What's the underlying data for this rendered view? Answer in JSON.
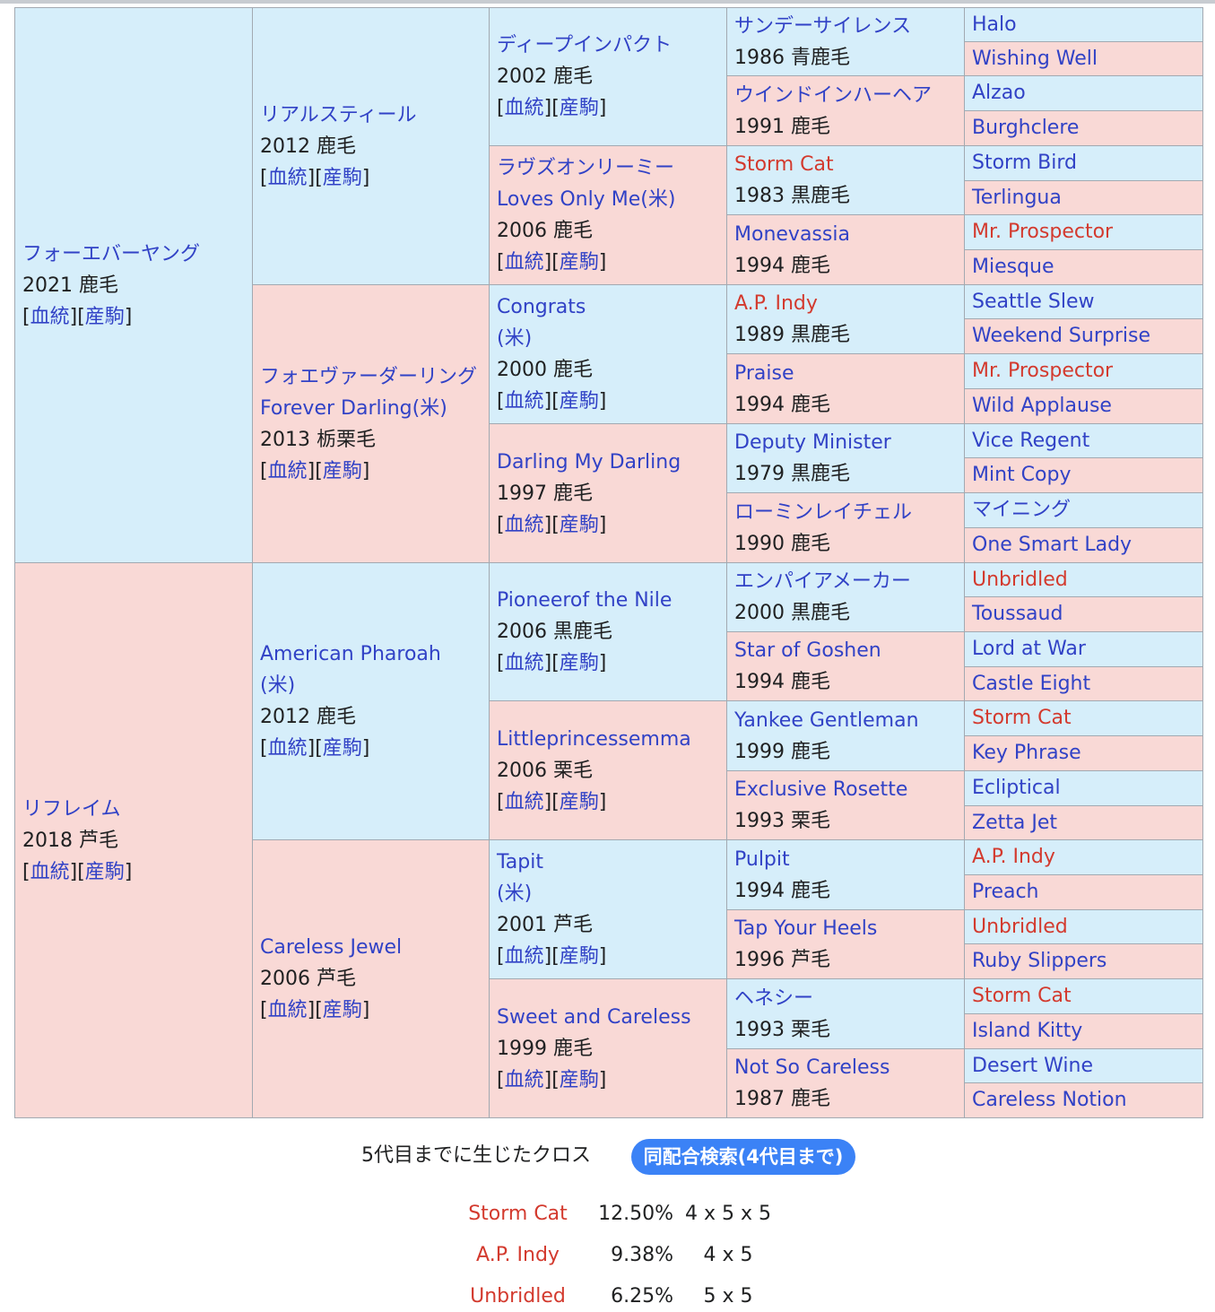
{
  "gen1": [
    {
      "name": "フォーエバーヤング",
      "year": "2021 鹿毛",
      "sex": "male"
    },
    {
      "name": "リフレイム",
      "year": "2018 芦毛",
      "sex": "female"
    }
  ],
  "gen2": [
    {
      "name": "リアルスティール",
      "year": "2012 鹿毛",
      "sex": "male"
    },
    {
      "name": "フォエヴァーダーリング",
      "name2": "Forever Darling(米)",
      "year": "2013 栃栗毛",
      "sex": "female"
    },
    {
      "name": "American Pharoah",
      "name2": "(米)",
      "year": "2012 鹿毛",
      "sex": "male"
    },
    {
      "name": "Careless Jewel",
      "year": "2006 芦毛",
      "sex": "female"
    }
  ],
  "gen3": [
    {
      "name": "ディープインパクト",
      "year": "2002 鹿毛",
      "sex": "male"
    },
    {
      "name": "ラヴズオンリーミー",
      "name2": "Loves Only Me(米)",
      "year": "2006 鹿毛",
      "sex": "female"
    },
    {
      "name": "Congrats",
      "name2": "(米)",
      "year": "2000 鹿毛",
      "sex": "male"
    },
    {
      "name": "Darling My Darling",
      "year": "1997 鹿毛",
      "sex": "female"
    },
    {
      "name": "Pioneerof the Nile",
      "year": "2006 黒鹿毛",
      "sex": "male"
    },
    {
      "name": "Littleprincessemma",
      "year": "2006 栗毛",
      "sex": "female"
    },
    {
      "name": "Tapit",
      "name2": "(米)",
      "year": "2001 芦毛",
      "sex": "male"
    },
    {
      "name": "Sweet and Careless",
      "year": "1999 鹿毛",
      "sex": "female"
    }
  ],
  "gen4": [
    {
      "name": "サンデーサイレンス",
      "year": "1986 青鹿毛",
      "sex": "male",
      "cross": false
    },
    {
      "name": "ウインドインハーヘア",
      "year": "1991 鹿毛",
      "sex": "female",
      "cross": false
    },
    {
      "name": "Storm Cat",
      "year": "1983 黒鹿毛",
      "sex": "male",
      "cross": true
    },
    {
      "name": "Monevassia",
      "year": "1994 鹿毛",
      "sex": "female",
      "cross": false
    },
    {
      "name": "A.P. Indy",
      "year": "1989 黒鹿毛",
      "sex": "male",
      "cross": true
    },
    {
      "name": "Praise",
      "year": "1994 鹿毛",
      "sex": "female",
      "cross": false
    },
    {
      "name": "Deputy Minister",
      "year": "1979 黒鹿毛",
      "sex": "male",
      "cross": false
    },
    {
      "name": "ローミンレイチェル",
      "year": "1990 鹿毛",
      "sex": "female",
      "cross": false
    },
    {
      "name": "エンパイアメーカー",
      "year": "2000 黒鹿毛",
      "sex": "male",
      "cross": false
    },
    {
      "name": "Star of Goshen",
      "year": "1994 鹿毛",
      "sex": "female",
      "cross": false
    },
    {
      "name": "Yankee Gentleman",
      "year": "1999 鹿毛",
      "sex": "male",
      "cross": false
    },
    {
      "name": "Exclusive Rosette",
      "year": "1993 栗毛",
      "sex": "female",
      "cross": false
    },
    {
      "name": "Pulpit",
      "year": "1994 鹿毛",
      "sex": "male",
      "cross": false
    },
    {
      "name": "Tap Your Heels",
      "year": "1996 芦毛",
      "sex": "female",
      "cross": false
    },
    {
      "name": "ヘネシー",
      "year": "1993 栗毛",
      "sex": "male",
      "cross": false
    },
    {
      "name": "Not So Careless",
      "year": "1987 鹿毛",
      "sex": "female",
      "cross": false
    }
  ],
  "gen5": [
    {
      "name": "Halo",
      "cross": false
    },
    {
      "name": "Wishing Well",
      "cross": false
    },
    {
      "name": "Alzao",
      "cross": false
    },
    {
      "name": "Burghclere",
      "cross": false
    },
    {
      "name": "Storm Bird",
      "cross": false
    },
    {
      "name": "Terlingua",
      "cross": false
    },
    {
      "name": "Mr. Prospector",
      "cross": true
    },
    {
      "name": "Miesque",
      "cross": false
    },
    {
      "name": "Seattle Slew",
      "cross": false
    },
    {
      "name": "Weekend Surprise",
      "cross": false
    },
    {
      "name": "Mr. Prospector",
      "cross": true
    },
    {
      "name": "Wild Applause",
      "cross": false
    },
    {
      "name": "Vice Regent",
      "cross": false
    },
    {
      "name": "Mint Copy",
      "cross": false
    },
    {
      "name": "マイニング",
      "cross": false
    },
    {
      "name": "One Smart Lady",
      "cross": false
    },
    {
      "name": "Unbridled",
      "cross": true
    },
    {
      "name": "Toussaud",
      "cross": false
    },
    {
      "name": "Lord at War",
      "cross": false
    },
    {
      "name": "Castle Eight",
      "cross": false
    },
    {
      "name": "Storm Cat",
      "cross": true
    },
    {
      "name": "Key Phrase",
      "cross": false
    },
    {
      "name": "Ecliptical",
      "cross": false
    },
    {
      "name": "Zetta Jet",
      "cross": false
    },
    {
      "name": "A.P. Indy",
      "cross": true
    },
    {
      "name": "Preach",
      "cross": false
    },
    {
      "name": "Unbridled",
      "cross": true
    },
    {
      "name": "Ruby Slippers",
      "cross": false
    },
    {
      "name": "Storm Cat",
      "cross": true
    },
    {
      "name": "Island Kitty",
      "cross": false
    },
    {
      "name": "Desert Wine",
      "cross": false
    },
    {
      "name": "Careless Notion",
      "cross": false
    }
  ],
  "links": {
    "bloodline": "血統",
    "offspring": "産駒",
    "open": "[",
    "mid": "][",
    "close": "]"
  },
  "crosses": {
    "heading": "5代目までに生じたクロス",
    "search_button": "同配合検索(4代目まで)",
    "rows": [
      {
        "name": "Storm Cat",
        "percent": "12.50%",
        "gens": "4 x 5 x 5"
      },
      {
        "name": "A.P. Indy",
        "percent": "9.38%",
        "gens": "4 x 5"
      },
      {
        "name": "Unbridled",
        "percent": "6.25%",
        "gens": "5 x 5"
      }
    ]
  },
  "colors": {
    "male_bg": "#d6eefa",
    "female_bg": "#f9d9d6",
    "link": "#3142c6",
    "cross": "#d33a2e",
    "button": "#3b82f6"
  }
}
